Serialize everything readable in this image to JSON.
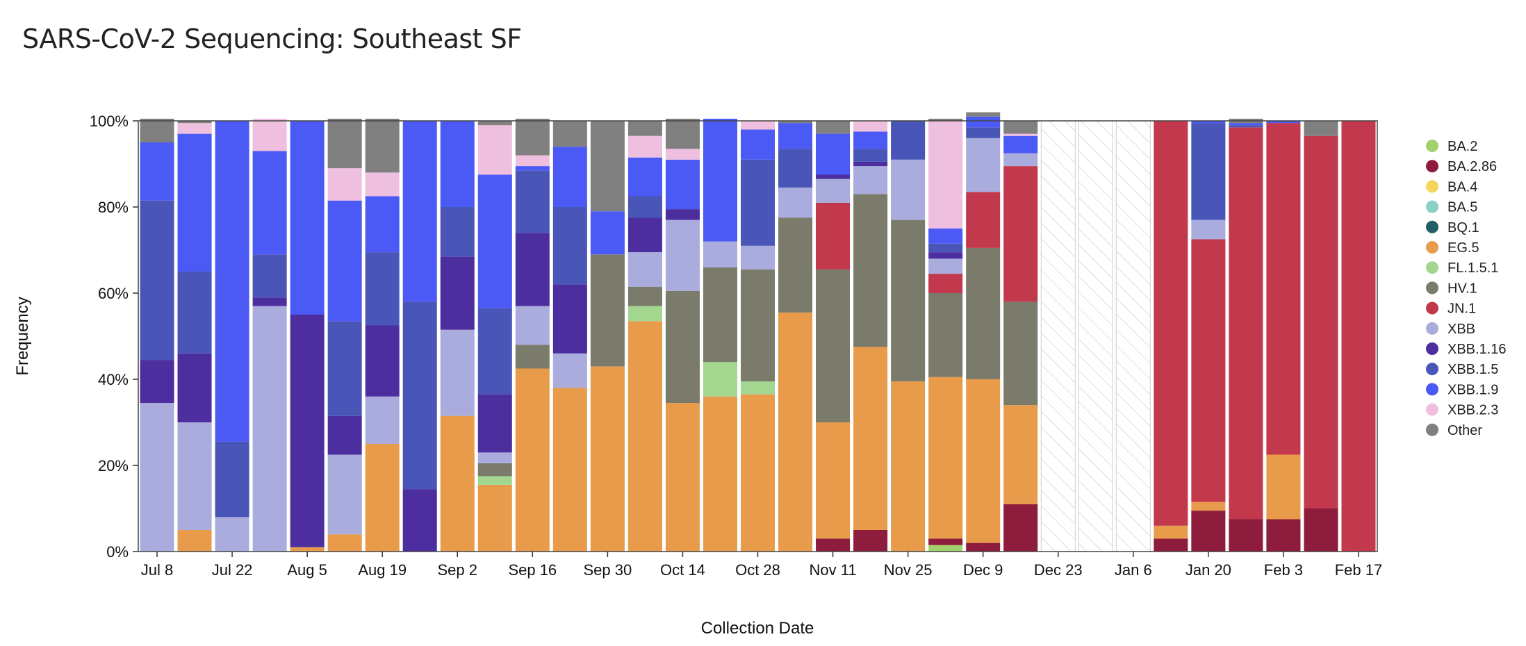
{
  "title": "SARS-CoV-2 Sequencing: Southeast SF",
  "chart_data": {
    "type": "bar",
    "stacked": true,
    "title": "SARS-CoV-2 Sequencing: Southeast SF",
    "xlabel": "Collection Date",
    "ylabel": "Frequency",
    "ylim": [
      0,
      100
    ],
    "y_ticks": [
      "0%",
      "20%",
      "40%",
      "60%",
      "80%",
      "100%"
    ],
    "x_tick_labels": [
      "Jul 8",
      "Jul 22",
      "Aug 5",
      "Aug 19",
      "Sep 2",
      "Sep 16",
      "Sep 30",
      "Oct 14",
      "Oct 28",
      "Nov 11",
      "Nov 25",
      "Dec 9",
      "Dec 23",
      "Jan 6",
      "Jan 20",
      "Feb 3",
      "Feb 17"
    ],
    "categories": [
      "Jul 8",
      "Jul 15",
      "Jul 22",
      "Jul 29",
      "Aug 5",
      "Aug 12",
      "Aug 19",
      "Aug 26",
      "Sep 2",
      "Sep 9",
      "Sep 16",
      "Sep 23",
      "Sep 30",
      "Oct 7",
      "Oct 14",
      "Oct 21",
      "Oct 28",
      "Nov 4",
      "Nov 11",
      "Nov 18",
      "Nov 25",
      "Dec 2",
      "Dec 9",
      "Dec 16",
      "Dec 23",
      "Dec 30",
      "Jan 6",
      "Jan 13",
      "Jan 20",
      "Jan 27",
      "Feb 3",
      "Feb 10",
      "Feb 17"
    ],
    "no_data_weeks": [
      "Dec 23",
      "Dec 30",
      "Jan 6"
    ],
    "legend": [
      "BA.2",
      "BA.2.86",
      "BA.4",
      "BA.5",
      "BQ.1",
      "EG.5",
      "FL.1.5.1",
      "HV.1",
      "JN.1",
      "XBB",
      "XBB.1.16",
      "XBB.1.5",
      "XBB.1.9",
      "XBB.2.3",
      "Other"
    ],
    "colors": {
      "BA.2": "#a3cf6d",
      "BA.2.86": "#8e1c3c",
      "BA.4": "#f5d55b",
      "BA.5": "#8ecfc3",
      "BQ.1": "#1f5f65",
      "EG.5": "#e99b4c",
      "FL.1.5.1": "#a3d68e",
      "HV.1": "#7b7b6b",
      "JN.1": "#c2384c",
      "XBB": "#a9acdc",
      "XBB.1.16": "#4c2e9f",
      "XBB.1.5": "#4a55b8",
      "XBB.1.9": "#4b59f5",
      "XBB.2.3": "#efbfdf",
      "Other": "#808080"
    },
    "series": [
      {
        "name": "BA.2",
        "values": [
          0,
          0,
          0,
          0,
          0,
          0,
          0,
          0,
          0,
          0,
          0,
          0,
          0,
          0,
          0,
          0,
          0,
          0,
          0,
          0,
          0,
          1.5,
          0,
          0,
          0,
          0,
          0,
          0,
          0,
          0,
          0,
          0,
          0
        ]
      },
      {
        "name": "BA.2.86",
        "values": [
          0,
          0,
          0,
          0,
          0,
          0,
          0,
          0,
          0,
          0,
          0,
          0,
          0,
          0,
          0,
          0,
          0,
          0,
          3,
          5,
          0,
          1.5,
          2,
          11,
          0,
          0,
          0,
          3,
          9.5,
          7.5,
          7.5,
          10,
          0
        ]
      },
      {
        "name": "EG.5",
        "values": [
          0,
          5,
          0,
          0,
          1,
          4,
          25,
          0,
          31.5,
          15.5,
          42.5,
          38,
          43,
          53.5,
          34.5,
          36,
          36.5,
          55.5,
          27,
          42.5,
          39.5,
          37.5,
          38,
          23,
          0,
          0,
          0,
          3,
          2,
          0,
          15,
          0,
          0
        ]
      },
      {
        "name": "FL.1.5.1",
        "values": [
          0,
          0,
          0,
          0,
          0,
          0,
          0,
          0,
          0,
          2,
          0,
          0,
          0,
          3.5,
          0,
          8,
          3,
          0,
          0,
          0,
          0,
          0,
          0,
          0,
          0,
          0,
          0,
          0,
          0,
          0,
          0,
          0,
          0
        ]
      },
      {
        "name": "HV.1",
        "values": [
          0,
          0,
          0,
          0,
          0,
          0,
          0,
          0,
          0,
          3,
          5.5,
          0,
          26,
          4.5,
          26,
          22,
          26,
          22,
          35.5,
          35.5,
          37.5,
          19.5,
          30.5,
          24,
          0,
          0,
          0,
          0,
          0,
          0,
          0,
          0,
          0
        ]
      },
      {
        "name": "JN.1",
        "values": [
          0,
          0,
          0,
          0,
          0,
          0,
          0,
          0,
          0,
          0,
          0,
          0,
          0,
          0,
          0,
          0,
          0,
          0,
          15.5,
          0,
          0,
          4.5,
          13,
          31.5,
          0,
          0,
          0,
          94,
          61,
          91,
          77,
          86.5,
          100
        ]
      },
      {
        "name": "XBB",
        "values": [
          34.5,
          25,
          8,
          57,
          0,
          18.5,
          11,
          0,
          20,
          2.5,
          9,
          8,
          0,
          8,
          16.5,
          6,
          5.5,
          7,
          5.5,
          6.5,
          14,
          3.5,
          12.5,
          3,
          0,
          0,
          0,
          0,
          4.5,
          0,
          0,
          0,
          0
        ]
      },
      {
        "name": "XBB.1.16",
        "values": [
          10,
          16,
          0,
          2,
          54,
          9,
          16.5,
          14.5,
          17,
          13.5,
          17,
          16,
          0,
          8,
          2.5,
          0,
          0,
          0,
          1,
          1,
          0,
          1.5,
          0,
          0,
          0,
          0,
          0,
          0,
          0,
          0,
          0,
          0,
          0
        ]
      },
      {
        "name": "XBB.1.5",
        "values": [
          37,
          19,
          17.5,
          10,
          0,
          22,
          17,
          43.5,
          11.5,
          20,
          14.5,
          18,
          0,
          5,
          0,
          0,
          20,
          9,
          0,
          3,
          9,
          2,
          2.5,
          0,
          0,
          0,
          0,
          0,
          22.5,
          0.5,
          0,
          0,
          0
        ]
      },
      {
        "name": "XBB.1.9",
        "values": [
          13.5,
          32,
          74.5,
          24,
          45,
          28,
          13,
          42,
          20,
          31,
          1,
          14,
          10,
          9,
          11.5,
          28.5,
          7,
          6,
          9.5,
          4,
          0,
          3.5,
          2.5,
          4,
          0,
          0,
          0,
          0,
          0.5,
          0.5,
          0.5,
          0,
          0
        ]
      },
      {
        "name": "XBB.2.3",
        "values": [
          0,
          2.5,
          0,
          7.5,
          0,
          7.5,
          5.5,
          0,
          0,
          11.5,
          2.5,
          0,
          0,
          5,
          2.5,
          0,
          2,
          0,
          0,
          2.5,
          0,
          25,
          0,
          0.5,
          0,
          0,
          0,
          0,
          0,
          0,
          0,
          0,
          0
        ]
      },
      {
        "name": "Other",
        "values": [
          5.5,
          0.5,
          0,
          0,
          0,
          11.5,
          12.5,
          0,
          0,
          1,
          8.5,
          6,
          21,
          3.5,
          7,
          0,
          0,
          0.5,
          3,
          0,
          0,
          0.5,
          1,
          3,
          0,
          0,
          0,
          0,
          0,
          1,
          0,
          3.5,
          0
        ]
      }
    ]
  }
}
